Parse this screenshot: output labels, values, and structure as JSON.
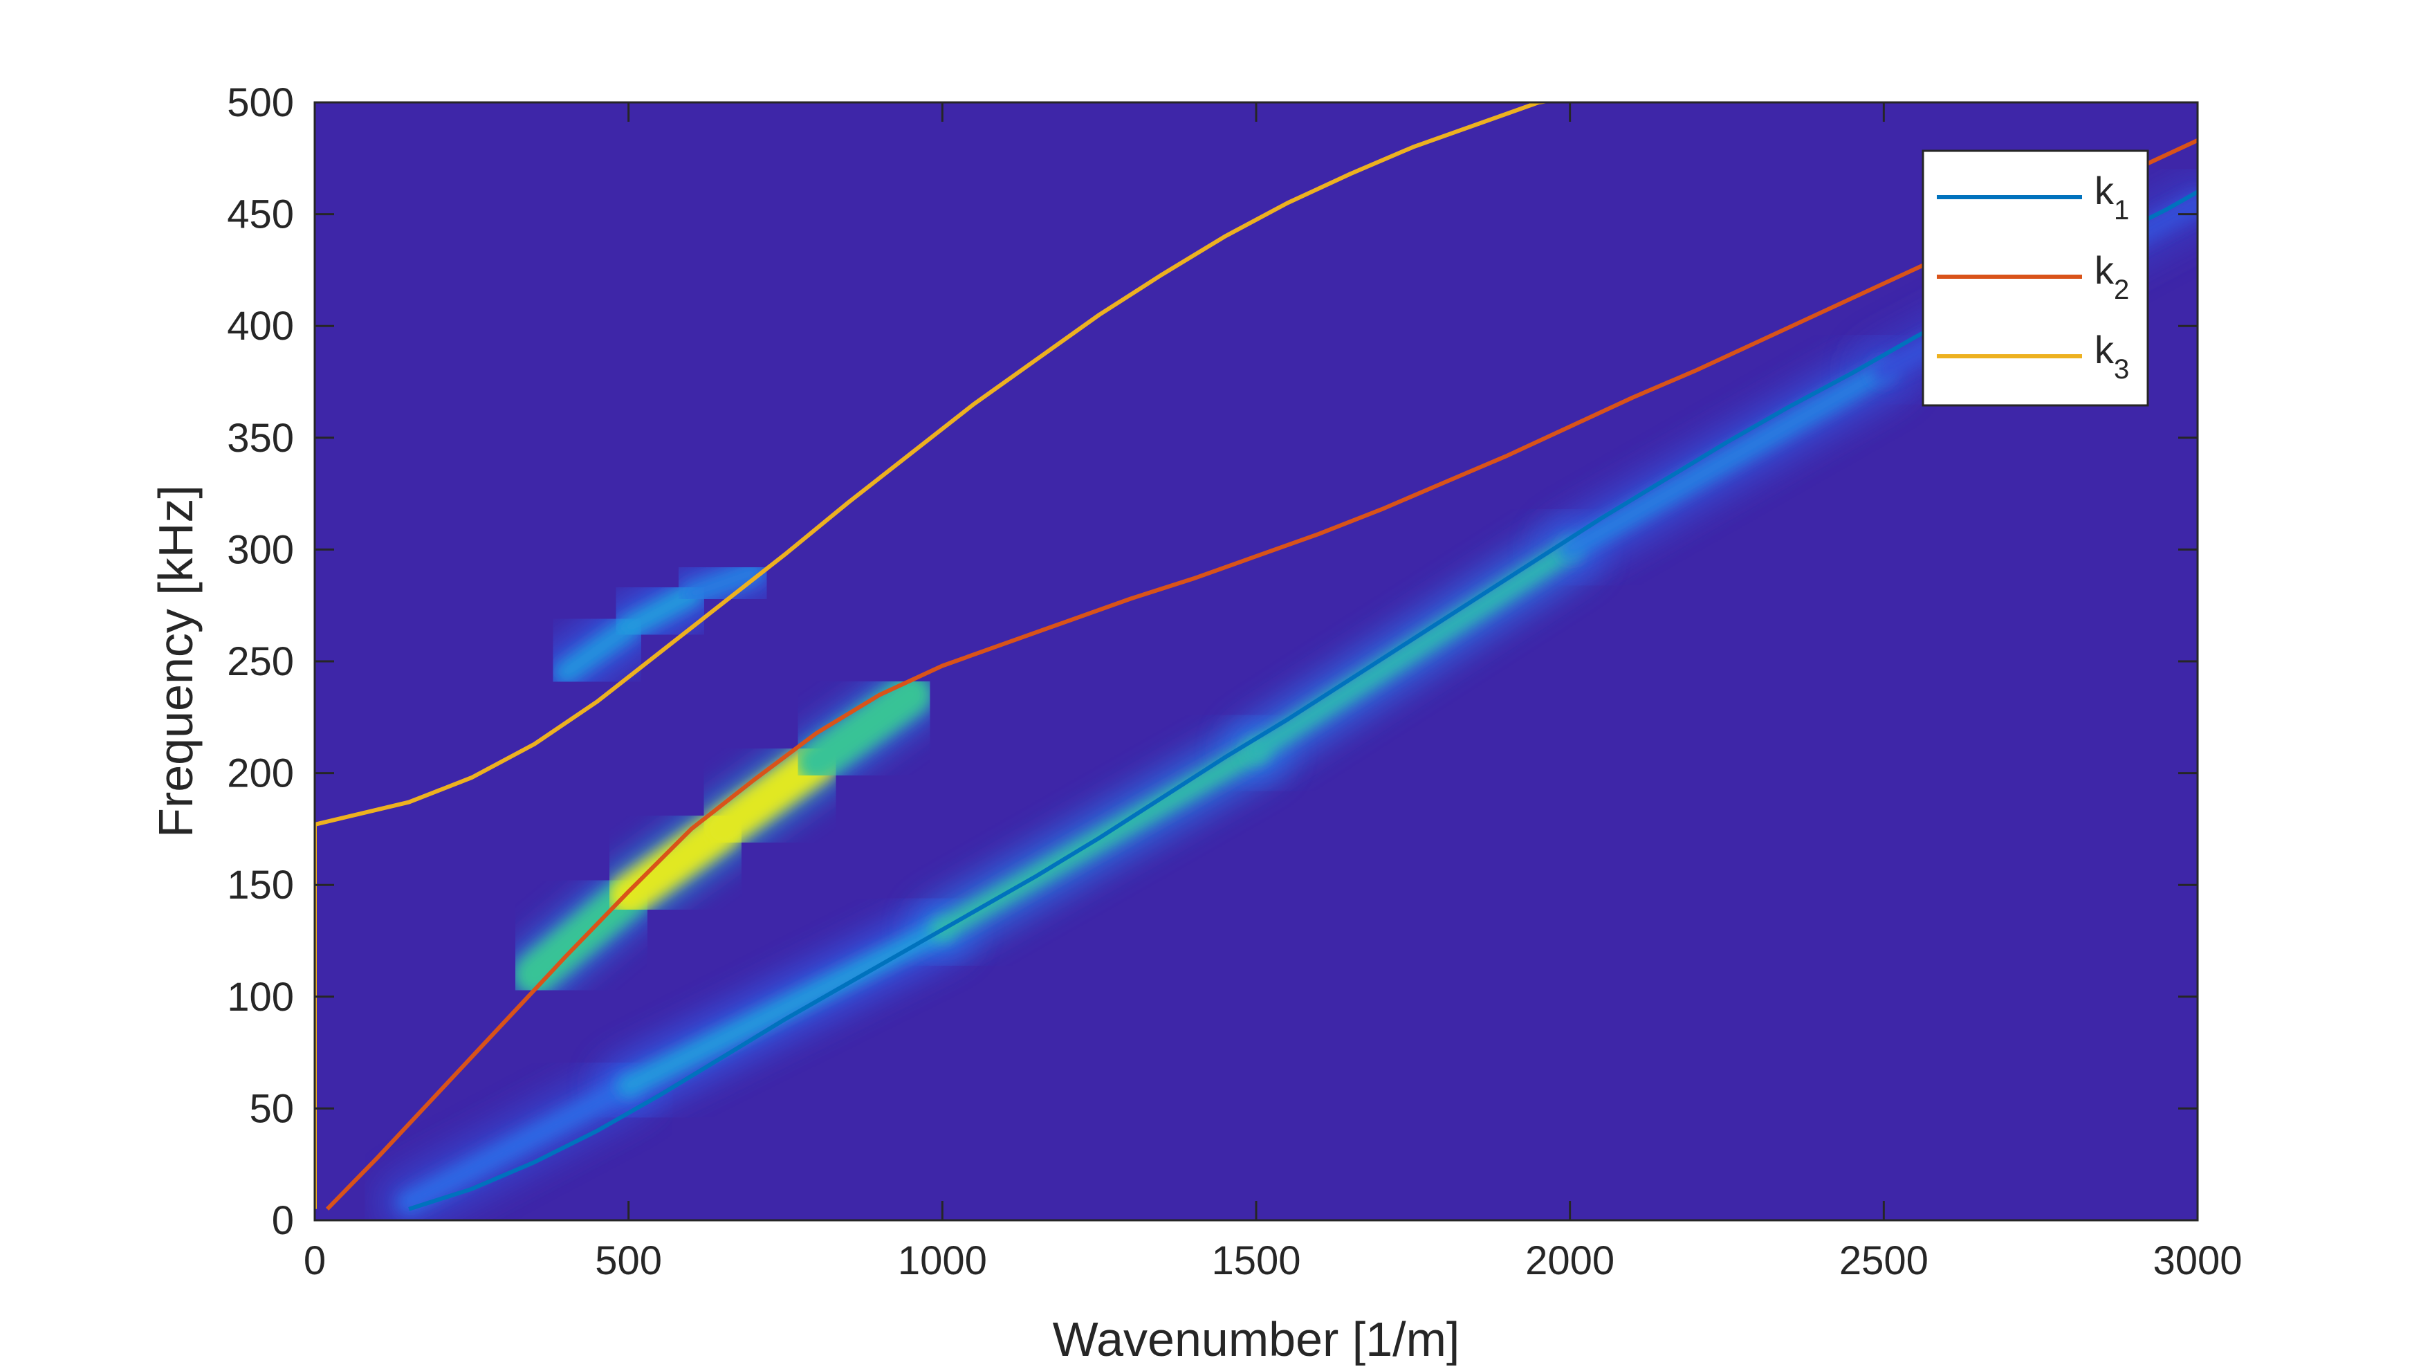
{
  "chart_data": {
    "type": "heatmap",
    "title": "",
    "xlabel": "Wavenumber [1/m]",
    "ylabel": "Frequency [kHz]",
    "xlim": [
      0,
      3000
    ],
    "ylim": [
      0,
      500
    ],
    "xticks": [
      "0",
      "500",
      "1000",
      "1500",
      "2000",
      "2500",
      "3000"
    ],
    "yticks": [
      "0",
      "50",
      "100",
      "150",
      "200",
      "250",
      "300",
      "350",
      "400",
      "450",
      "500"
    ],
    "grid": false,
    "colormap": "parula",
    "colors": {
      "background": "#3e26a8",
      "k1": "#0072bd",
      "k2": "#d95319",
      "k3": "#edb120"
    },
    "heatmap_ridges": [
      {
        "description_units": "kHz vs 1/m",
        "x_start": 0,
        "x_end": 3000,
        "points": [
          [
            150,
            8
          ],
          [
            500,
            60
          ],
          [
            1000,
            130
          ],
          [
            1500,
            210
          ],
          [
            2000,
            300
          ],
          [
            2500,
            380
          ],
          [
            3000,
            455
          ]
        ],
        "intensity": [
          0.25,
          0.45,
          0.6,
          0.75,
          0.55,
          0.3,
          0.15
        ]
      },
      {
        "points": [
          [
            350,
            110
          ],
          [
            500,
            145
          ],
          [
            650,
            175
          ],
          [
            800,
            205
          ],
          [
            950,
            235
          ]
        ],
        "intensity": [
          0.55,
          0.9,
          1.0,
          0.9,
          0.55
        ]
      },
      {
        "points": [
          [
            400,
            245
          ],
          [
            500,
            265
          ],
          [
            600,
            280
          ],
          [
            700,
            290
          ]
        ],
        "intensity": [
          0.45,
          0.55,
          0.5,
          0.35
        ]
      }
    ],
    "legend": {
      "position": "top-right",
      "entries": [
        {
          "base": "k",
          "sub": "1"
        },
        {
          "base": "k",
          "sub": "2"
        },
        {
          "base": "k",
          "sub": "3"
        }
      ]
    },
    "series": [
      {
        "name": "k1",
        "x": [
          150,
          250,
          350,
          450,
          550,
          650,
          750,
          850,
          950,
          1050,
          1150,
          1250,
          1350,
          1450,
          1550,
          1650,
          1750,
          1850,
          1950,
          2050,
          2150,
          2250,
          2350,
          2450,
          2550,
          2650,
          2750,
          2850,
          2950,
          3000
        ],
        "y": [
          5,
          14,
          26,
          40,
          56,
          73,
          90,
          106,
          122,
          138,
          154,
          171,
          189,
          207,
          224,
          242,
          260,
          278,
          296,
          314,
          331,
          348,
          364,
          379,
          395,
          410,
          424,
          438,
          452,
          460
        ]
      },
      {
        "name": "k2",
        "x": [
          20,
          100,
          200,
          300,
          400,
          500,
          600,
          700,
          800,
          900,
          1000,
          1100,
          1200,
          1300,
          1400,
          1500,
          1600,
          1700,
          1800,
          1900,
          2000,
          2100,
          2200,
          2300,
          2400,
          2500,
          2600,
          2700,
          2800,
          2900,
          3000
        ],
        "y": [
          5,
          28,
          58,
          88,
          118,
          147,
          175,
          197,
          218,
          235,
          248,
          258,
          268,
          278,
          287,
          297,
          307,
          318,
          330,
          342,
          355,
          368,
          380,
          393,
          406,
          419,
          432,
          445,
          458,
          470,
          483
        ]
      },
      {
        "name": "k3",
        "x": [
          0,
          0,
          150,
          250,
          350,
          450,
          550,
          650,
          750,
          850,
          950,
          1050,
          1150,
          1250,
          1350,
          1450,
          1550,
          1650,
          1750,
          1850,
          1950,
          2070
        ],
        "y": [
          5,
          177,
          187,
          198,
          213,
          232,
          254,
          276,
          298,
          321,
          343,
          365,
          385,
          405,
          423,
          440,
          455,
          468,
          480,
          490,
          500,
          505
        ]
      }
    ]
  }
}
